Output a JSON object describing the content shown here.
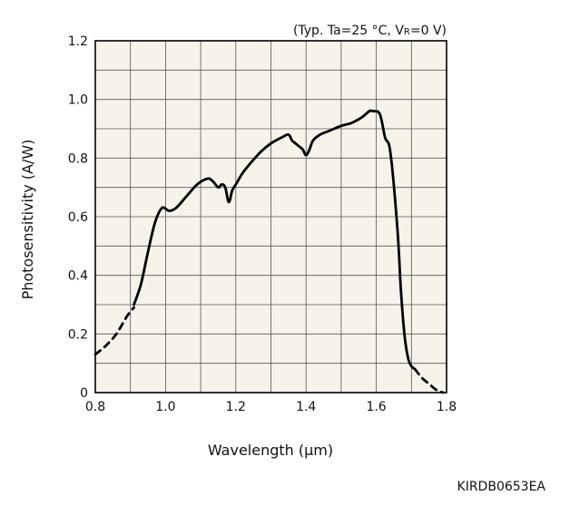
{
  "chart_data": {
    "type": "line",
    "title": "",
    "conditions": {
      "prefix": "(Typ. Ta=25 °C, V",
      "subscript": "R",
      "suffix": "=0 V)"
    },
    "xlabel": "Wavelength (μm)",
    "ylabel": "Photosensitivity (A/W)",
    "xlim": [
      0.8,
      1.8
    ],
    "ylim": [
      0,
      1.2
    ],
    "xticks": [
      0.8,
      1.0,
      1.2,
      1.4,
      1.6,
      1.8
    ],
    "xtick_labels": [
      "0.8",
      "1.0",
      "1.2",
      "1.4",
      "1.6",
      "1.8"
    ],
    "yticks": [
      0,
      0.2,
      0.4,
      0.6,
      0.8,
      1.0,
      1.2
    ],
    "ytick_labels": [
      "0",
      "0.2",
      "0.4",
      "0.6",
      "0.8",
      "1.0",
      "1.2"
    ],
    "grid": true,
    "background_color": "#f6f4ea",
    "line_color": "#000000",
    "series": [
      {
        "style": "dashed",
        "x": [
          0.8,
          0.83,
          0.86,
          0.89,
          0.91
        ],
        "y": [
          0.13,
          0.16,
          0.2,
          0.26,
          0.29
        ]
      },
      {
        "style": "solid",
        "x": [
          0.91,
          0.93,
          0.95,
          0.97,
          0.99,
          1.01,
          1.03,
          1.06,
          1.09,
          1.12,
          1.135,
          1.15,
          1.16,
          1.17,
          1.18,
          1.19,
          1.2,
          1.22,
          1.24,
          1.27,
          1.3,
          1.33,
          1.35,
          1.36,
          1.37,
          1.38,
          1.39,
          1.4,
          1.41,
          1.42,
          1.44,
          1.46,
          1.48,
          1.5,
          1.53,
          1.56,
          1.58,
          1.59,
          1.61,
          1.625,
          1.64,
          1.66,
          1.67,
          1.68,
          1.69,
          1.7,
          1.71
        ],
        "y": [
          0.3,
          0.37,
          0.48,
          0.58,
          0.63,
          0.62,
          0.63,
          0.67,
          0.71,
          0.73,
          0.72,
          0.7,
          0.71,
          0.7,
          0.65,
          0.69,
          0.71,
          0.75,
          0.78,
          0.82,
          0.85,
          0.87,
          0.88,
          0.86,
          0.85,
          0.84,
          0.83,
          0.81,
          0.83,
          0.86,
          0.88,
          0.89,
          0.9,
          0.91,
          0.92,
          0.94,
          0.96,
          0.96,
          0.95,
          0.87,
          0.82,
          0.56,
          0.35,
          0.2,
          0.12,
          0.09,
          0.08
        ]
      },
      {
        "style": "dashed",
        "x": [
          1.71,
          1.73,
          1.75,
          1.77,
          1.79
        ],
        "y": [
          0.08,
          0.05,
          0.03,
          0.01,
          0.0
        ]
      }
    ]
  },
  "figure_code": "KIRDB0653EA"
}
